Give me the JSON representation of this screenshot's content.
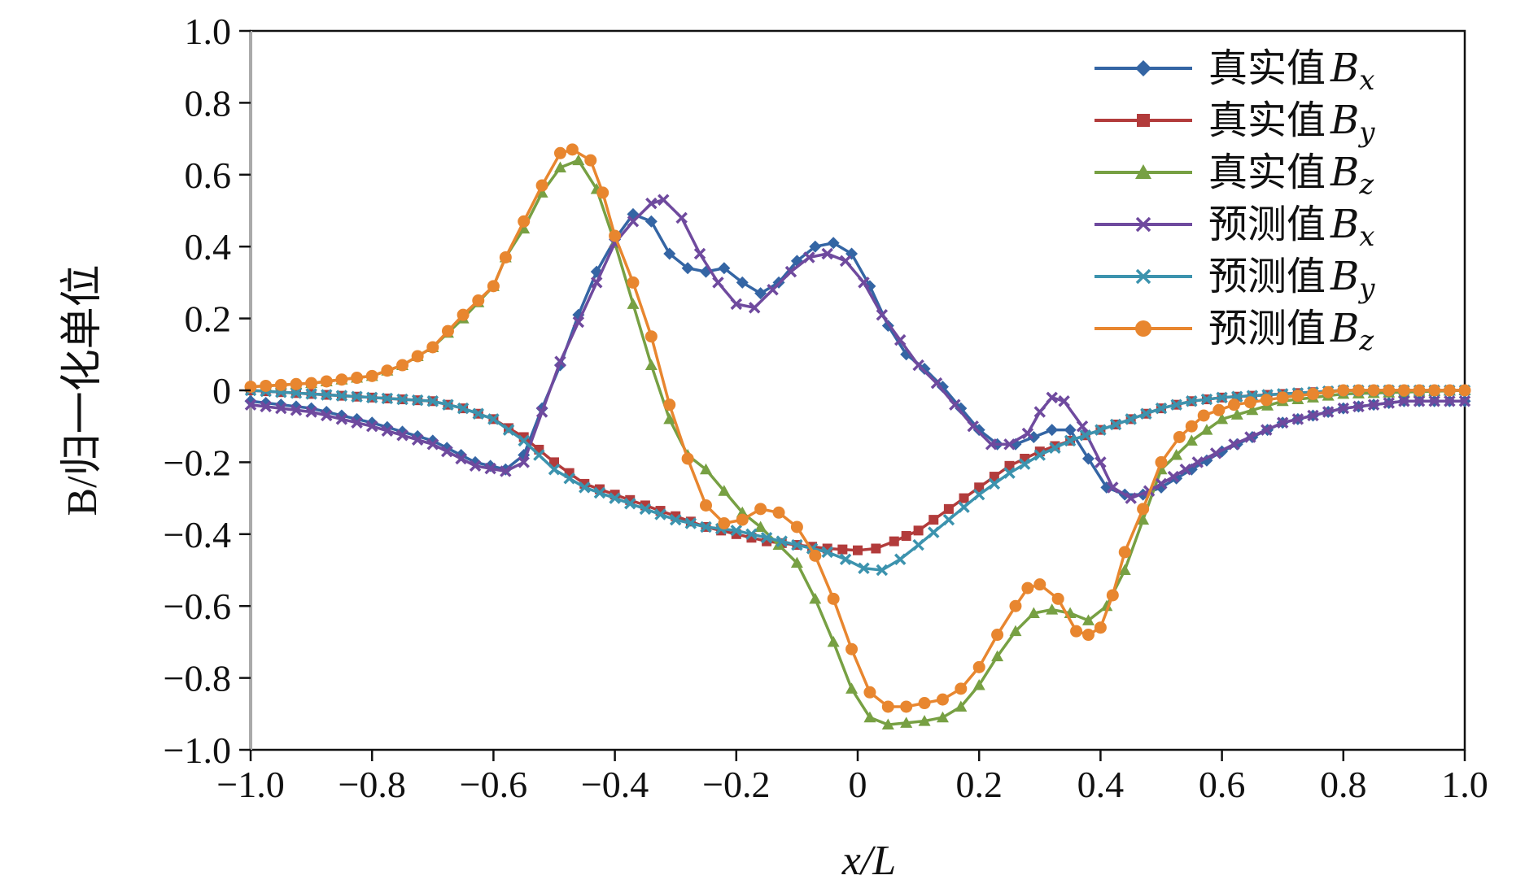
{
  "chart_data": {
    "type": "line",
    "xlabel": "x/L",
    "ylabel": "B/归一化单位",
    "xlim": [
      -1.0,
      1.0
    ],
    "ylim": [
      -1.0,
      1.0
    ],
    "x_ticks": [
      -1.0,
      -0.8,
      -0.6,
      -0.4,
      -0.2,
      0,
      0.2,
      0.4,
      0.6,
      0.8,
      1.0
    ],
    "x_tick_labels": [
      "−1.0",
      "−0.8",
      "−0.6",
      "−0.4",
      "−0.2",
      "0",
      "0.2",
      "0.4",
      "0.6",
      "0.8",
      "1.0"
    ],
    "y_ticks": [
      1.0,
      0.8,
      0.6,
      0.4,
      0.2,
      0,
      -0.2,
      -0.4,
      -0.6,
      -0.8,
      -1.0
    ],
    "y_tick_labels": [
      "1.0",
      "0.8",
      "0.6",
      "0.4",
      "0.2",
      "0",
      "−0.2",
      "−0.4",
      "−0.6",
      "−0.8",
      "−1.0"
    ],
    "legend_position": "top-right",
    "grid": false,
    "series": [
      {
        "name": "真实值Bx",
        "name_main": "真实值",
        "name_var": "B",
        "name_sub": "x",
        "color": "#3465a4",
        "marker": "diamond",
        "points": [
          [
            -1.0,
            -0.03
          ],
          [
            -0.9,
            -0.05
          ],
          [
            -0.8,
            -0.09
          ],
          [
            -0.7,
            -0.14
          ],
          [
            -0.63,
            -0.2
          ],
          [
            -0.58,
            -0.22
          ],
          [
            -0.55,
            -0.18
          ],
          [
            -0.52,
            -0.05
          ],
          [
            -0.49,
            0.07
          ],
          [
            -0.46,
            0.21
          ],
          [
            -0.43,
            0.33
          ],
          [
            -0.4,
            0.42
          ],
          [
            -0.37,
            0.49
          ],
          [
            -0.34,
            0.47
          ],
          [
            -0.31,
            0.38
          ],
          [
            -0.28,
            0.34
          ],
          [
            -0.25,
            0.33
          ],
          [
            -0.22,
            0.34
          ],
          [
            -0.19,
            0.3
          ],
          [
            -0.16,
            0.27
          ],
          [
            -0.13,
            0.3
          ],
          [
            -0.1,
            0.36
          ],
          [
            -0.07,
            0.4
          ],
          [
            -0.04,
            0.41
          ],
          [
            -0.01,
            0.38
          ],
          [
            0.02,
            0.29
          ],
          [
            0.05,
            0.18
          ],
          [
            0.08,
            0.1
          ],
          [
            0.11,
            0.06
          ],
          [
            0.14,
            0.01
          ],
          [
            0.17,
            -0.05
          ],
          [
            0.2,
            -0.11
          ],
          [
            0.23,
            -0.15
          ],
          [
            0.26,
            -0.15
          ],
          [
            0.29,
            -0.13
          ],
          [
            0.32,
            -0.11
          ],
          [
            0.35,
            -0.11
          ],
          [
            0.38,
            -0.19
          ],
          [
            0.41,
            -0.27
          ],
          [
            0.44,
            -0.29
          ],
          [
            0.47,
            -0.29
          ],
          [
            0.5,
            -0.27
          ],
          [
            0.55,
            -0.22
          ],
          [
            0.6,
            -0.17
          ],
          [
            0.7,
            -0.09
          ],
          [
            0.8,
            -0.05
          ],
          [
            0.9,
            -0.03
          ],
          [
            1.0,
            -0.03
          ]
        ]
      },
      {
        "name": "真实值By",
        "name_main": "真实值",
        "name_var": "B",
        "name_sub": "y",
        "color": "#b23b3b",
        "marker": "square",
        "points": [
          [
            -1.0,
            0.0
          ],
          [
            -0.9,
            -0.01
          ],
          [
            -0.8,
            -0.02
          ],
          [
            -0.7,
            -0.03
          ],
          [
            -0.65,
            -0.05
          ],
          [
            -0.6,
            -0.08
          ],
          [
            -0.55,
            -0.13
          ],
          [
            -0.5,
            -0.2
          ],
          [
            -0.45,
            -0.26
          ],
          [
            -0.4,
            -0.29
          ],
          [
            -0.35,
            -0.32
          ],
          [
            -0.3,
            -0.35
          ],
          [
            -0.25,
            -0.38
          ],
          [
            -0.2,
            -0.4
          ],
          [
            -0.15,
            -0.42
          ],
          [
            -0.1,
            -0.43
          ],
          [
            -0.05,
            -0.44
          ],
          [
            0.0,
            -0.445
          ],
          [
            0.03,
            -0.44
          ],
          [
            0.06,
            -0.42
          ],
          [
            0.1,
            -0.39
          ],
          [
            0.15,
            -0.33
          ],
          [
            0.2,
            -0.27
          ],
          [
            0.25,
            -0.21
          ],
          [
            0.3,
            -0.17
          ],
          [
            0.35,
            -0.14
          ],
          [
            0.4,
            -0.11
          ],
          [
            0.45,
            -0.08
          ],
          [
            0.5,
            -0.05
          ],
          [
            0.55,
            -0.03
          ],
          [
            0.6,
            -0.02
          ],
          [
            0.7,
            -0.01
          ],
          [
            0.8,
            0.0
          ],
          [
            1.0,
            0.0
          ]
        ]
      },
      {
        "name": "真实值Bz",
        "name_main": "真实值",
        "name_var": "B",
        "name_sub": "z",
        "color": "#77a043",
        "marker": "triangle",
        "points": [
          [
            -1.0,
            0.01
          ],
          [
            -0.9,
            0.02
          ],
          [
            -0.8,
            0.04
          ],
          [
            -0.75,
            0.07
          ],
          [
            -0.7,
            0.12
          ],
          [
            -0.65,
            0.2
          ],
          [
            -0.6,
            0.29
          ],
          [
            -0.58,
            0.37
          ],
          [
            -0.55,
            0.45
          ],
          [
            -0.52,
            0.55
          ],
          [
            -0.49,
            0.62
          ],
          [
            -0.46,
            0.64
          ],
          [
            -0.43,
            0.56
          ],
          [
            -0.4,
            0.41
          ],
          [
            -0.37,
            0.24
          ],
          [
            -0.34,
            0.07
          ],
          [
            -0.31,
            -0.08
          ],
          [
            -0.28,
            -0.18
          ],
          [
            -0.25,
            -0.22
          ],
          [
            -0.22,
            -0.28
          ],
          [
            -0.19,
            -0.34
          ],
          [
            -0.16,
            -0.38
          ],
          [
            -0.13,
            -0.43
          ],
          [
            -0.1,
            -0.48
          ],
          [
            -0.07,
            -0.58
          ],
          [
            -0.04,
            -0.7
          ],
          [
            -0.01,
            -0.83
          ],
          [
            0.02,
            -0.91
          ],
          [
            0.05,
            -0.93
          ],
          [
            0.08,
            -0.925
          ],
          [
            0.11,
            -0.92
          ],
          [
            0.14,
            -0.91
          ],
          [
            0.17,
            -0.88
          ],
          [
            0.2,
            -0.82
          ],
          [
            0.23,
            -0.74
          ],
          [
            0.26,
            -0.67
          ],
          [
            0.29,
            -0.62
          ],
          [
            0.32,
            -0.61
          ],
          [
            0.35,
            -0.62
          ],
          [
            0.38,
            -0.64
          ],
          [
            0.41,
            -0.6
          ],
          [
            0.44,
            -0.5
          ],
          [
            0.47,
            -0.36
          ],
          [
            0.5,
            -0.22
          ],
          [
            0.55,
            -0.14
          ],
          [
            0.6,
            -0.08
          ],
          [
            0.7,
            -0.03
          ],
          [
            0.8,
            -0.01
          ],
          [
            1.0,
            0.0
          ]
        ]
      },
      {
        "name": "预测值Bx",
        "name_main": "预测值",
        "name_var": "B",
        "name_sub": "x",
        "color": "#6f4a9e",
        "marker": "x",
        "points": [
          [
            -1.0,
            -0.04
          ],
          [
            -0.9,
            -0.06
          ],
          [
            -0.8,
            -0.1
          ],
          [
            -0.7,
            -0.15
          ],
          [
            -0.63,
            -0.21
          ],
          [
            -0.58,
            -0.225
          ],
          [
            -0.55,
            -0.2
          ],
          [
            -0.52,
            -0.06
          ],
          [
            -0.49,
            0.08
          ],
          [
            -0.46,
            0.19
          ],
          [
            -0.43,
            0.3
          ],
          [
            -0.4,
            0.41
          ],
          [
            -0.37,
            0.47
          ],
          [
            -0.34,
            0.52
          ],
          [
            -0.32,
            0.53
          ],
          [
            -0.29,
            0.48
          ],
          [
            -0.26,
            0.38
          ],
          [
            -0.23,
            0.3
          ],
          [
            -0.2,
            0.24
          ],
          [
            -0.17,
            0.23
          ],
          [
            -0.14,
            0.28
          ],
          [
            -0.11,
            0.33
          ],
          [
            -0.08,
            0.37
          ],
          [
            -0.05,
            0.38
          ],
          [
            -0.02,
            0.36
          ],
          [
            0.01,
            0.3
          ],
          [
            0.04,
            0.21
          ],
          [
            0.07,
            0.14
          ],
          [
            0.1,
            0.07
          ],
          [
            0.13,
            0.02
          ],
          [
            0.16,
            -0.04
          ],
          [
            0.19,
            -0.1
          ],
          [
            0.22,
            -0.15
          ],
          [
            0.25,
            -0.15
          ],
          [
            0.28,
            -0.12
          ],
          [
            0.3,
            -0.06
          ],
          [
            0.32,
            -0.02
          ],
          [
            0.34,
            -0.03
          ],
          [
            0.37,
            -0.1
          ],
          [
            0.4,
            -0.2
          ],
          [
            0.42,
            -0.27
          ],
          [
            0.45,
            -0.3
          ],
          [
            0.48,
            -0.28
          ],
          [
            0.52,
            -0.24
          ],
          [
            0.56,
            -0.2
          ],
          [
            0.62,
            -0.15
          ],
          [
            0.7,
            -0.09
          ],
          [
            0.8,
            -0.05
          ],
          [
            0.9,
            -0.03
          ],
          [
            1.0,
            -0.03
          ]
        ]
      },
      {
        "name": "预测值By",
        "name_main": "预测值",
        "name_var": "B",
        "name_sub": "y",
        "color": "#3c93ae",
        "marker": "x",
        "points": [
          [
            -1.0,
            0.0
          ],
          [
            -0.9,
            -0.01
          ],
          [
            -0.8,
            -0.02
          ],
          [
            -0.7,
            -0.03
          ],
          [
            -0.65,
            -0.05
          ],
          [
            -0.6,
            -0.08
          ],
          [
            -0.55,
            -0.14
          ],
          [
            -0.5,
            -0.22
          ],
          [
            -0.45,
            -0.27
          ],
          [
            -0.4,
            -0.3
          ],
          [
            -0.35,
            -0.33
          ],
          [
            -0.3,
            -0.36
          ],
          [
            -0.25,
            -0.38
          ],
          [
            -0.2,
            -0.39
          ],
          [
            -0.15,
            -0.41
          ],
          [
            -0.1,
            -0.43
          ],
          [
            -0.05,
            -0.45
          ],
          [
            -0.02,
            -0.47
          ],
          [
            0.01,
            -0.495
          ],
          [
            0.04,
            -0.5
          ],
          [
            0.07,
            -0.47
          ],
          [
            0.1,
            -0.43
          ],
          [
            0.15,
            -0.36
          ],
          [
            0.2,
            -0.29
          ],
          [
            0.25,
            -0.23
          ],
          [
            0.3,
            -0.18
          ],
          [
            0.35,
            -0.14
          ],
          [
            0.4,
            -0.11
          ],
          [
            0.45,
            -0.08
          ],
          [
            0.5,
            -0.05
          ],
          [
            0.55,
            -0.03
          ],
          [
            0.6,
            -0.02
          ],
          [
            0.7,
            -0.01
          ],
          [
            0.8,
            0.0
          ],
          [
            1.0,
            0.0
          ]
        ]
      },
      {
        "name": "预测值Bz",
        "name_main": "预测值",
        "name_var": "B",
        "name_sub": "z",
        "color": "#e8862f",
        "marker": "circle",
        "points": [
          [
            -1.0,
            0.01
          ],
          [
            -0.9,
            0.02
          ],
          [
            -0.8,
            0.04
          ],
          [
            -0.75,
            0.07
          ],
          [
            -0.7,
            0.12
          ],
          [
            -0.65,
            0.21
          ],
          [
            -0.6,
            0.29
          ],
          [
            -0.58,
            0.37
          ],
          [
            -0.55,
            0.47
          ],
          [
            -0.52,
            0.57
          ],
          [
            -0.49,
            0.66
          ],
          [
            -0.47,
            0.67
          ],
          [
            -0.44,
            0.64
          ],
          [
            -0.42,
            0.55
          ],
          [
            -0.4,
            0.43
          ],
          [
            -0.37,
            0.3
          ],
          [
            -0.34,
            0.15
          ],
          [
            -0.31,
            -0.04
          ],
          [
            -0.28,
            -0.19
          ],
          [
            -0.25,
            -0.32
          ],
          [
            -0.22,
            -0.37
          ],
          [
            -0.19,
            -0.36
          ],
          [
            -0.16,
            -0.33
          ],
          [
            -0.13,
            -0.34
          ],
          [
            -0.1,
            -0.38
          ],
          [
            -0.07,
            -0.46
          ],
          [
            -0.04,
            -0.58
          ],
          [
            -0.01,
            -0.72
          ],
          [
            0.02,
            -0.84
          ],
          [
            0.05,
            -0.88
          ],
          [
            0.08,
            -0.88
          ],
          [
            0.11,
            -0.87
          ],
          [
            0.14,
            -0.86
          ],
          [
            0.17,
            -0.83
          ],
          [
            0.2,
            -0.77
          ],
          [
            0.23,
            -0.68
          ],
          [
            0.26,
            -0.6
          ],
          [
            0.28,
            -0.55
          ],
          [
            0.3,
            -0.54
          ],
          [
            0.33,
            -0.58
          ],
          [
            0.36,
            -0.67
          ],
          [
            0.38,
            -0.68
          ],
          [
            0.4,
            -0.66
          ],
          [
            0.42,
            -0.57
          ],
          [
            0.44,
            -0.45
          ],
          [
            0.47,
            -0.33
          ],
          [
            0.5,
            -0.2
          ],
          [
            0.53,
            -0.13
          ],
          [
            0.57,
            -0.07
          ],
          [
            0.62,
            -0.04
          ],
          [
            0.7,
            -0.02
          ],
          [
            0.8,
            0.0
          ],
          [
            1.0,
            0.0
          ]
        ]
      }
    ]
  }
}
